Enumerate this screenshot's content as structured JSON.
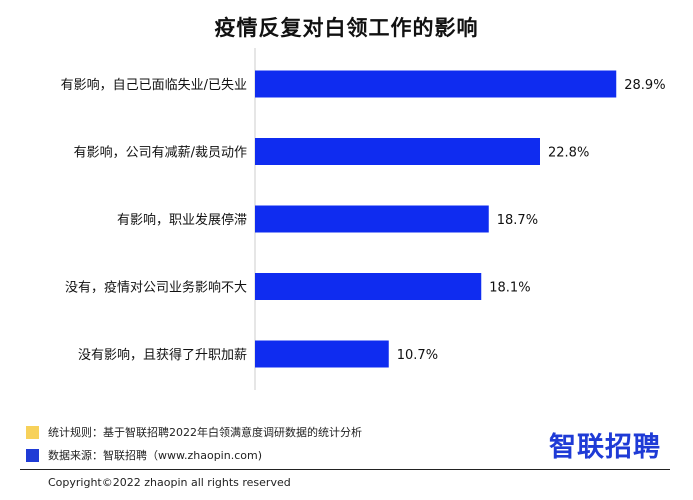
{
  "title": "疫情反复对白领工作的影响",
  "chart_data": {
    "type": "bar",
    "orientation": "horizontal",
    "categories": [
      "有影响，自己已面临失业/已失业",
      "有影响，公司有减薪/裁员动作",
      "有影响，职业发展停滞",
      "没有，疫情对公司业务影响不大",
      "没有影响，且获得了升职加薪"
    ],
    "values": [
      28.9,
      22.8,
      18.7,
      18.1,
      10.7
    ],
    "value_labels": [
      "28.9%",
      "22.8%",
      "18.7%",
      "18.1%",
      "10.7%"
    ],
    "unit": "%",
    "bar_color": "#0f2cf0",
    "xlim": [
      0,
      30
    ],
    "grid": false
  },
  "legend": {
    "rule": {
      "label": "统计规则：基于智联招聘2022年白领满意度调研数据的统计分析",
      "color": "#f7d15a"
    },
    "source": {
      "label": "数据来源：智联招聘（www.zhaopin.com)",
      "color": "#1f3bd6"
    }
  },
  "logo": "智联招聘",
  "copyright": "Copyright©2022 zhaopin all rights reserved"
}
